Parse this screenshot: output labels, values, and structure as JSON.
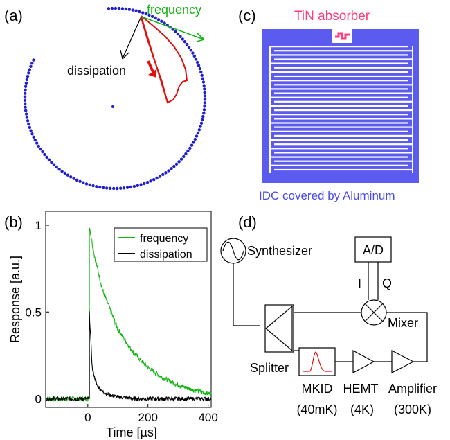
{
  "panels": {
    "a": {
      "label": "(a)",
      "frequency_label": "frequency",
      "dissipation_label": "dissipation",
      "colors": {
        "circle": "#1f1fd0",
        "pulse": "#e01010",
        "frequency": "#14b414",
        "dissipation": "#000000"
      }
    },
    "b": {
      "label": "(b)",
      "xlabel": "Time [µs]",
      "ylabel": "Response [a.u.]",
      "xticks": [
        "0",
        "200",
        "400"
      ],
      "yticks": [
        "0",
        "0.5",
        "1"
      ],
      "legend": {
        "frequency": "frequency",
        "dissipation": "dissipation"
      }
    },
    "c": {
      "label": "(c)",
      "absorber_label": "TiN absorber",
      "idc_label": "IDC covered by Aluminum",
      "colors": {
        "metal": "#5b5bf0",
        "absorber": "#ff3d7a",
        "label_blue": "#4a4af0",
        "label_red": "#ff3d7a"
      }
    },
    "d": {
      "label": "(d)",
      "synth": "Synthesizer",
      "ad": "A/D",
      "i": "I",
      "q": "Q",
      "mixer": "Mixer",
      "splitter": "Splitter",
      "mkid": "MKID",
      "mkid_t": "(40mK)",
      "hemt": "HEMT",
      "hemt_t": "(4K)",
      "amp": "Amplifier",
      "amp_t": "(300K)"
    }
  },
  "chart_data": {
    "type": "line",
    "xlabel": "Time [µs]",
    "ylabel": "Response [a.u.]",
    "xlim": [
      -140,
      410
    ],
    "ylim": [
      -0.05,
      1.08
    ],
    "xticks": [
      0,
      200,
      400
    ],
    "yticks": [
      0,
      0.5,
      1
    ],
    "legend_position": "top-right",
    "series": [
      {
        "name": "frequency",
        "color": "#14b414",
        "peak": 1.0,
        "pulse_start": 5,
        "baseline": 0,
        "tail_at_400": 0.03,
        "x": [
          5,
          20,
          50,
          100,
          150,
          200,
          250,
          300,
          350,
          400
        ],
        "values": [
          1.0,
          0.84,
          0.62,
          0.4,
          0.27,
          0.18,
          0.12,
          0.08,
          0.05,
          0.03
        ]
      },
      {
        "name": "dissipation",
        "color": "#000000",
        "peak": 0.5,
        "pulse_start": 5,
        "baseline": 0,
        "x": [
          5,
          15,
          30,
          50,
          75,
          100,
          150,
          400
        ],
        "values": [
          0.5,
          0.17,
          0.08,
          0.04,
          0.02,
          0.01,
          0.0,
          0.0
        ]
      }
    ]
  }
}
